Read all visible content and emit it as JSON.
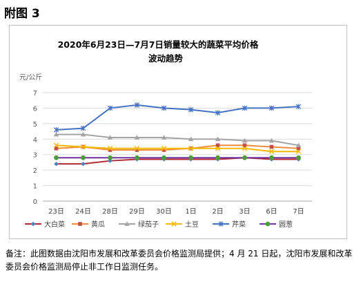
{
  "page": {
    "heading": "附图 3",
    "footnote": "备注：此图数据由沈阳市发展和改革委员会价格监测局提供；4 月 21 日起，沈阳市发展和改革委员会价格监测局停止非工作日监测任务。"
  },
  "chart_data": {
    "type": "line",
    "title_line1": "2020年6月23日—7月7日销量较大的蔬菜平均价格",
    "title_line2": "波动趋势",
    "ylabel": "元/公斤",
    "ylim": [
      0,
      7
    ],
    "yticks": [
      "0",
      "1",
      "2",
      "3",
      "4",
      "5",
      "6",
      "7"
    ],
    "grid": true,
    "legend_position": "bottom",
    "categories": [
      "23日",
      "24日",
      "28日",
      "29日",
      "30日",
      "1日",
      "2日",
      "3日",
      "6日",
      "7日"
    ],
    "series": [
      {
        "name": "大白菜",
        "color": "#4a7ebb",
        "line_color": "#b02a30",
        "marker": "diamond",
        "values": [
          2.4,
          2.4,
          2.6,
          2.7,
          2.7,
          2.7,
          2.7,
          2.8,
          2.7,
          2.7
        ]
      },
      {
        "name": "黄瓜",
        "color": "#c0504d",
        "line_color": "#f08c3c",
        "marker": "square",
        "values": [
          3.4,
          3.5,
          3.3,
          3.3,
          3.3,
          3.4,
          3.6,
          3.6,
          3.5,
          3.4
        ]
      },
      {
        "name": "绿茄子",
        "color": "#a5a5a5",
        "line_color": "#a5a5a5",
        "marker": "triangle",
        "values": [
          4.3,
          4.3,
          4.1,
          4.1,
          4.1,
          4.0,
          4.0,
          3.9,
          3.9,
          3.6
        ]
      },
      {
        "name": "土豆",
        "color": "#f5b800",
        "line_color": "#f5b800",
        "marker": "x",
        "values": [
          3.6,
          3.5,
          3.4,
          3.4,
          3.4,
          3.4,
          3.4,
          3.4,
          3.2,
          3.2
        ]
      },
      {
        "name": "芹菜",
        "color": "#4472c4",
        "line_color": "#4472c4",
        "marker": "star",
        "values": [
          4.6,
          4.7,
          6.0,
          6.2,
          6.0,
          5.9,
          5.7,
          6.0,
          6.0,
          6.1
        ]
      },
      {
        "name": "圆葱",
        "color": "#4e9a3e",
        "line_color": "#7030a0",
        "marker": "circle",
        "values": [
          2.8,
          2.8,
          2.8,
          2.8,
          2.8,
          2.8,
          2.8,
          2.8,
          2.8,
          2.8
        ]
      }
    ]
  }
}
